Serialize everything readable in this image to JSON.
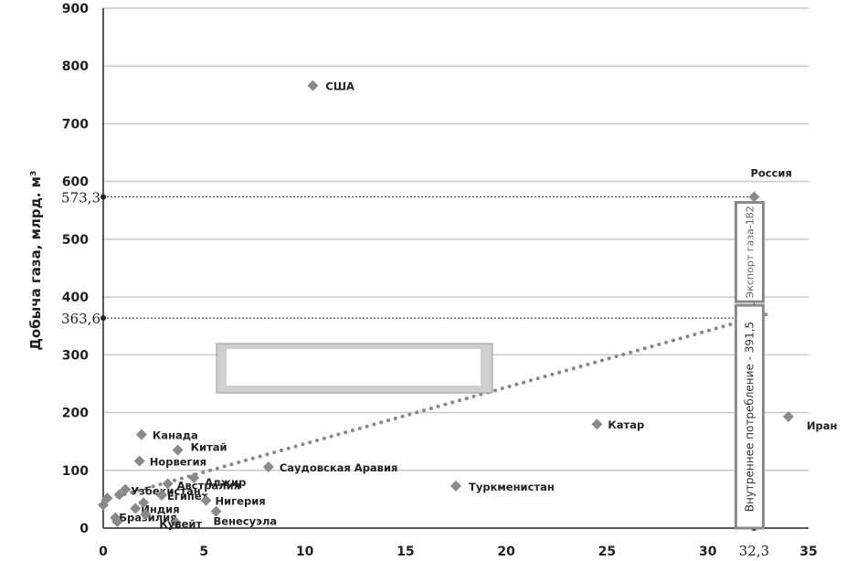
{
  "chart_data": {
    "type": "scatter",
    "ylabel": "Добыча газа, млрд. м³",
    "xlim": [
      0,
      35
    ],
    "ylim": [
      0,
      900
    ],
    "x_ticks": [
      "0",
      "5",
      "10",
      "15",
      "20",
      "25",
      "30",
      "35"
    ],
    "y_ticks": [
      "0",
      "100",
      "200",
      "300",
      "400",
      "500",
      "600",
      "700",
      "800",
      "900"
    ],
    "grid": "horizontal",
    "points": [
      {
        "label": "США",
        "x": 10.4,
        "y": 766
      },
      {
        "label": "Россия",
        "x": 32.3,
        "y": 573.3
      },
      {
        "label": "Иран",
        "x": 34.0,
        "y": 193
      },
      {
        "label": "Катар",
        "x": 24.5,
        "y": 180
      },
      {
        "label": "Канада",
        "x": 1.9,
        "y": 162
      },
      {
        "label": "Китай",
        "x": 3.7,
        "y": 135
      },
      {
        "label": "Норвегия",
        "x": 1.8,
        "y": 116
      },
      {
        "label": "Саудовская Аравия",
        "x": 8.2,
        "y": 106
      },
      {
        "label": "Алжир",
        "x": 4.5,
        "y": 87
      },
      {
        "label": "Австралия",
        "x": 3.2,
        "y": 77
      },
      {
        "label": "Туркменистан",
        "x": 17.5,
        "y": 73
      },
      {
        "label": "Узбекистан",
        "x": 1.1,
        "y": 67
      },
      {
        "label": "Египет",
        "x": 2.9,
        "y": 57
      },
      {
        "label": "Нигерия",
        "x": 5.1,
        "y": 48
      },
      {
        "label": "Индия",
        "x": 1.6,
        "y": 34
      },
      {
        "label": "Бразилия",
        "x": 0.6,
        "y": 18
      },
      {
        "label": "Кувейт",
        "x": 3.6,
        "y": 10
      },
      {
        "label": "Венесуэла",
        "x": 5.6,
        "y": 29
      },
      {
        "label": "",
        "x": 0.2,
        "y": 52
      },
      {
        "label": "",
        "x": 0.0,
        "y": 40
      },
      {
        "label": "",
        "x": 0.8,
        "y": 58
      },
      {
        "label": "",
        "x": 2.0,
        "y": 44
      },
      {
        "label": "",
        "x": 0.7,
        "y": 11
      },
      {
        "label": "",
        "x": 2.1,
        "y": 24
      }
    ],
    "trendline": {
      "style": "dotted",
      "x": [
        0,
        33.2
      ],
      "y": [
        48,
        373
      ]
    },
    "reference_values": {
      "x": "32,3",
      "y_total": "573,3",
      "y_domestic": "363,6"
    },
    "annotations": {
      "export": "Экспорт газа-182",
      "domestic": "Внутреннее потребление - 391,5"
    }
  },
  "colors": {
    "point": "#8a8a8a",
    "trend": "#8a8a8a",
    "grid": "#c8c8c8",
    "axis": "#222222"
  }
}
